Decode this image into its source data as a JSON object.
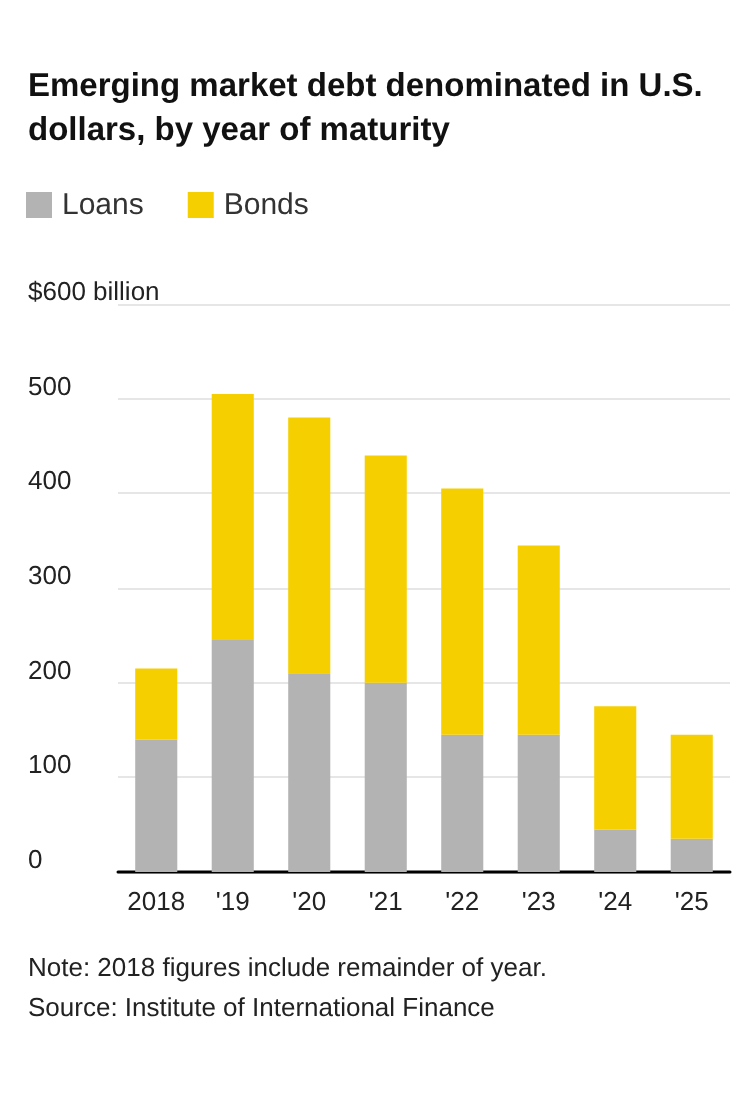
{
  "chart_data": {
    "type": "bar",
    "title": "Emerging market debt denominated in U.S. dollars, by year of maturity",
    "categories": [
      "2018",
      "'19",
      "'20",
      "'21",
      "'22",
      "'23",
      "'24",
      "'25"
    ],
    "series": [
      {
        "name": "Loans",
        "color": "#b3b3b3",
        "values": [
          140,
          245,
          210,
          200,
          145,
          145,
          45,
          35
        ]
      },
      {
        "name": "Bonds",
        "color": "#f5cf00",
        "values": [
          75,
          260,
          270,
          240,
          260,
          200,
          130,
          110
        ]
      }
    ],
    "stacked": true,
    "ylim": [
      0,
      600
    ],
    "yticks": [
      0,
      100,
      200,
      300,
      400,
      500,
      {
        "value": 600,
        "label": "$600 billion"
      }
    ],
    "grid": "y",
    "legend": "top left",
    "annotations": [
      "Note: 2018 figures include remainder of year.",
      "Source: Institute of International Finance"
    ]
  }
}
